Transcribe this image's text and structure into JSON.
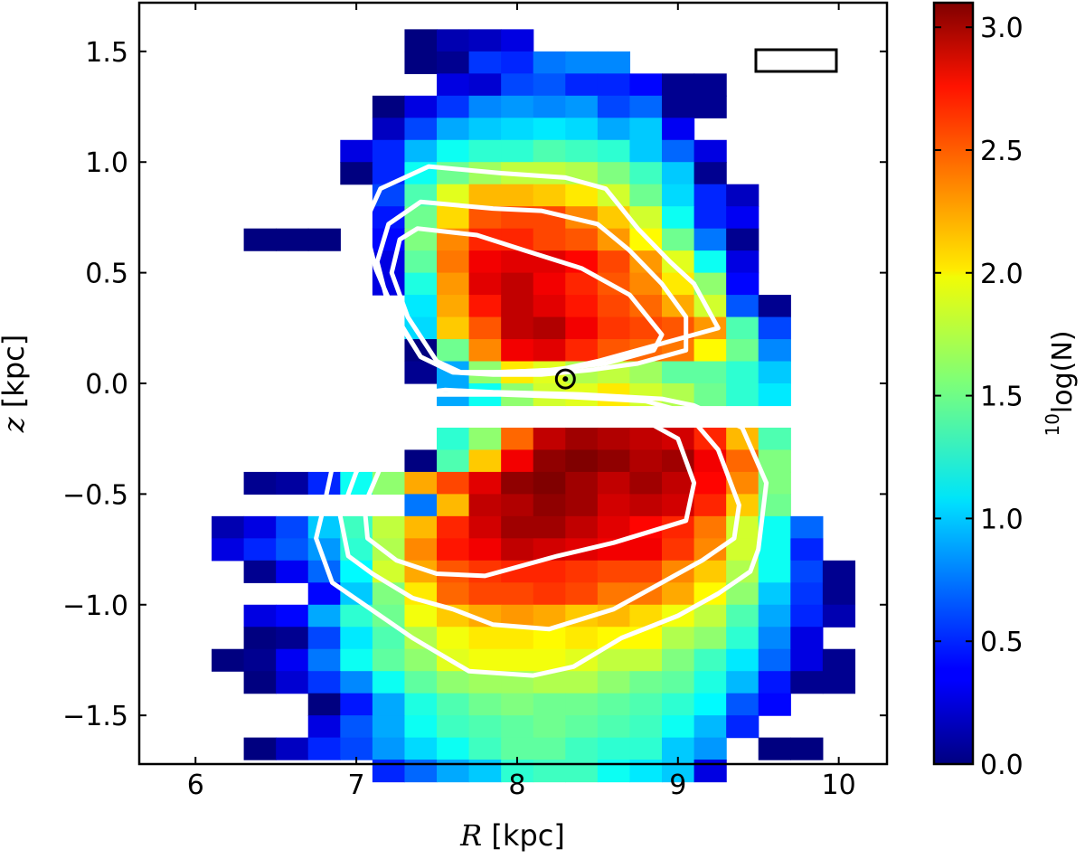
{
  "chart_data": {
    "type": "heatmap",
    "title": "",
    "xlabel_var": "R",
    "xlabel_unit": " [kpc]",
    "ylabel_var": "z",
    "ylabel_unit": " [kpc]",
    "xlim": [
      5.65,
      10.3
    ],
    "ylim": [
      -1.72,
      1.72
    ],
    "xticks": [
      6,
      7,
      8,
      9,
      10
    ],
    "xtick_labels": [
      "6",
      "7",
      "8",
      "9",
      "10"
    ],
    "yticks": [
      -1.5,
      -1.0,
      -0.5,
      0.0,
      0.5,
      1.0,
      1.5
    ],
    "ytick_labels": [
      "−1.5",
      "−1.0",
      "−0.5",
      "0.0",
      "0.5",
      "1.0",
      "1.5"
    ],
    "bin_R_start": 6.1,
    "bin_R_width": 0.2,
    "bin_z_top": 1.6,
    "bin_z_height": 0.1,
    "colorscale": "jet",
    "colorbar": {
      "label_prefix": "10",
      "label_main": "log(N)",
      "range": [
        0.0,
        3.1
      ],
      "ticks": [
        0.0,
        0.5,
        1.0,
        1.5,
        2.0,
        2.5,
        3.0
      ],
      "tick_labels": [
        "0.0",
        "0.5",
        "1.0",
        "1.5",
        "2.0",
        "2.5",
        "3.0"
      ]
    },
    "grid_description": "rows from z=1.6 down to z=-1.6 in 0.1 kpc steps; each row has 20 R-bins starting at R=6.1; null = empty bin",
    "grid": [
      [
        null,
        null,
        null,
        null,
        null,
        null,
        0.0,
        0.15,
        0.2,
        0.3,
        null,
        null,
        null,
        null,
        null,
        null,
        null,
        null,
        null,
        null
      ],
      [
        null,
        null,
        null,
        null,
        null,
        null,
        0.0,
        0.05,
        0.55,
        0.5,
        0.75,
        0.8,
        0.8,
        null,
        null,
        null,
        null,
        null,
        null,
        null
      ],
      [
        null,
        null,
        null,
        null,
        null,
        null,
        null,
        0.3,
        0.25,
        0.6,
        0.65,
        0.5,
        0.5,
        0.4,
        0.05,
        0.05,
        null,
        null,
        null,
        null
      ],
      [
        null,
        null,
        null,
        null,
        null,
        0.0,
        0.3,
        0.55,
        0.8,
        0.85,
        0.8,
        0.85,
        0.6,
        0.7,
        0.05,
        0.05,
        null,
        null,
        null,
        null
      ],
      [
        null,
        null,
        null,
        null,
        null,
        0.2,
        0.6,
        0.9,
        1.0,
        1.05,
        1.1,
        1.05,
        0.9,
        1.0,
        0.35,
        null,
        null,
        null,
        null,
        null
      ],
      [
        null,
        null,
        null,
        null,
        0.3,
        0.5,
        0.95,
        1.2,
        1.3,
        1.3,
        1.4,
        1.35,
        1.3,
        1.0,
        0.7,
        0.3,
        null,
        null,
        null,
        null
      ],
      [
        null,
        null,
        null,
        null,
        0.0,
        0.5,
        1.2,
        1.5,
        1.65,
        1.75,
        1.75,
        1.7,
        1.55,
        1.35,
        1.0,
        0.05,
        null,
        null,
        null,
        null
      ],
      [
        null,
        null,
        null,
        null,
        null,
        0.6,
        1.4,
        1.85,
        2.15,
        2.15,
        2.1,
        2.0,
        1.8,
        1.5,
        1.05,
        0.5,
        0.2,
        null,
        null,
        null
      ],
      [
        null,
        null,
        null,
        null,
        null,
        0.45,
        1.5,
        2.05,
        2.45,
        2.5,
        2.5,
        2.3,
        2.1,
        1.8,
        1.2,
        0.5,
        0.35,
        null,
        null,
        null
      ],
      [
        null,
        0.0,
        0.0,
        0.0,
        null,
        0.4,
        1.55,
        2.3,
        2.6,
        2.6,
        2.5,
        2.45,
        2.25,
        1.95,
        1.5,
        0.75,
        0.05,
        null,
        null,
        null
      ],
      [
        null,
        null,
        null,
        null,
        null,
        0.3,
        1.45,
        2.35,
        2.75,
        2.8,
        2.8,
        2.7,
        2.5,
        2.25,
        1.85,
        1.2,
        0.3,
        null,
        null,
        null
      ],
      [
        null,
        null,
        null,
        null,
        null,
        0.3,
        1.25,
        2.25,
        2.8,
        2.9,
        2.75,
        2.6,
        2.45,
        2.3,
        2.0,
        1.6,
        0.4,
        null,
        null,
        null
      ],
      [
        null,
        null,
        null,
        null,
        null,
        null,
        1.1,
        2.2,
        2.65,
        2.9,
        2.8,
        2.65,
        2.5,
        2.4,
        2.2,
        1.8,
        0.65,
        0.05,
        null,
        null
      ],
      [
        null,
        null,
        null,
        null,
        null,
        null,
        1.05,
        2.1,
        2.45,
        2.9,
        2.95,
        2.75,
        2.55,
        2.5,
        2.45,
        2.25,
        1.4,
        0.6,
        null,
        null
      ],
      [
        null,
        null,
        null,
        null,
        null,
        null,
        0.0,
        1.5,
        2.3,
        2.75,
        2.8,
        2.6,
        2.45,
        2.4,
        2.35,
        1.95,
        1.5,
        0.8,
        null,
        null
      ],
      [
        null,
        null,
        null,
        null,
        null,
        null,
        0.05,
        0.9,
        1.6,
        2.0,
        1.85,
        1.7,
        1.75,
        1.65,
        1.45,
        1.45,
        1.3,
        1.0,
        null,
        null
      ],
      [
        null,
        null,
        null,
        null,
        null,
        null,
        null,
        0.9,
        1.2,
        1.6,
        1.8,
        1.85,
        2.0,
        1.8,
        1.7,
        1.5,
        1.3,
        1.1,
        null,
        null
      ],
      [
        null,
        null,
        null,
        null,
        null,
        null,
        null,
        null,
        null,
        null,
        null,
        null,
        null,
        null,
        null,
        null,
        null,
        null,
        null,
        null
      ],
      [
        null,
        null,
        null,
        null,
        null,
        null,
        null,
        1.3,
        1.6,
        2.4,
        2.9,
        3.0,
        2.95,
        2.9,
        2.85,
        2.6,
        2.15,
        1.4,
        null,
        null
      ],
      [
        null,
        null,
        null,
        null,
        null,
        null,
        0.0,
        1.4,
        2.1,
        2.75,
        3.05,
        3.1,
        3.05,
        2.95,
        3.0,
        2.75,
        2.4,
        1.55,
        null,
        null
      ],
      [
        null,
        0.05,
        0.1,
        0.5,
        1.2,
        1.6,
        2.2,
        2.5,
        2.8,
        3.05,
        3.1,
        3.0,
        2.9,
        3.0,
        2.9,
        2.7,
        2.3,
        1.55,
        null,
        null
      ],
      [
        null,
        null,
        null,
        null,
        null,
        null,
        0.75,
        2.15,
        2.9,
        2.95,
        3.05,
        3.0,
        2.85,
        2.9,
        2.85,
        2.6,
        2.1,
        1.5,
        null,
        null
      ],
      [
        0.15,
        0.3,
        0.6,
        1.0,
        1.35,
        1.75,
        2.15,
        2.6,
        2.85,
        3.0,
        3.0,
        2.9,
        2.8,
        2.7,
        2.6,
        2.35,
        1.8,
        1.2,
        0.7,
        null
      ],
      [
        0.3,
        0.5,
        0.65,
        0.85,
        1.3,
        1.7,
        2.3,
        2.65,
        2.75,
        2.9,
        2.85,
        2.8,
        2.75,
        2.75,
        2.55,
        2.3,
        1.8,
        1.2,
        0.5,
        null
      ],
      [
        null,
        0.05,
        0.35,
        0.7,
        1.15,
        1.8,
        2.2,
        2.45,
        2.55,
        2.6,
        2.6,
        2.55,
        2.5,
        2.5,
        2.3,
        2.1,
        1.7,
        1.2,
        0.6,
        0.05
      ],
      [
        null,
        null,
        null,
        0.4,
        1.0,
        1.55,
        2.0,
        2.4,
        2.5,
        2.5,
        2.55,
        2.5,
        2.35,
        2.35,
        2.2,
        1.95,
        1.6,
        1.0,
        0.55,
        0.05
      ],
      [
        null,
        0.3,
        0.4,
        0.9,
        1.3,
        1.5,
        1.9,
        2.1,
        2.2,
        2.25,
        2.2,
        2.1,
        2.15,
        2.05,
        1.9,
        1.75,
        1.4,
        0.9,
        0.5,
        0.15
      ],
      [
        null,
        0.0,
        0.05,
        0.6,
        1.1,
        1.4,
        1.7,
        1.9,
        2.0,
        2.0,
        1.95,
        2.0,
        1.95,
        1.95,
        1.7,
        1.6,
        1.3,
        0.8,
        0.3,
        null
      ],
      [
        0.0,
        0.05,
        0.35,
        0.75,
        1.2,
        1.45,
        1.6,
        1.85,
        1.9,
        1.9,
        1.9,
        1.85,
        1.75,
        1.75,
        1.55,
        1.35,
        1.1,
        0.7,
        0.3,
        0.05
      ],
      [
        null,
        0.0,
        0.25,
        0.55,
        0.8,
        1.2,
        1.45,
        1.6,
        1.65,
        1.65,
        1.7,
        1.7,
        1.6,
        1.5,
        1.45,
        1.25,
        0.95,
        0.45,
        0.05,
        0.05
      ],
      [
        null,
        null,
        null,
        0.0,
        0.45,
        0.9,
        1.25,
        1.4,
        1.5,
        1.55,
        1.5,
        1.5,
        1.45,
        1.4,
        1.3,
        1.15,
        0.65,
        0.4,
        null,
        null
      ],
      [
        null,
        null,
        null,
        0.3,
        0.65,
        0.9,
        1.2,
        1.35,
        1.4,
        1.45,
        1.5,
        1.45,
        1.4,
        1.35,
        1.2,
        0.95,
        0.5,
        null,
        null,
        null
      ],
      [
        null,
        0.0,
        0.2,
        0.5,
        0.6,
        0.85,
        1.05,
        1.2,
        1.35,
        1.45,
        1.45,
        1.35,
        1.3,
        1.3,
        1.0,
        0.85,
        null,
        0.0,
        0.0,
        null
      ],
      [
        null,
        null,
        null,
        null,
        null,
        0.5,
        0.7,
        0.9,
        1.0,
        1.3,
        1.35,
        1.35,
        1.2,
        1.1,
        1.0,
        0.3,
        null,
        null,
        null,
        null
      ]
    ],
    "contours_description": "three white density contour levels, each drawn as an upper (z>0) and lower (z<0) closed loop",
    "contours": [
      {
        "level": "outer",
        "points": [
          [
            7.45,
            0.98
          ],
          [
            7.9,
            0.95
          ],
          [
            8.3,
            0.93
          ],
          [
            8.55,
            0.88
          ],
          [
            8.75,
            0.7
          ],
          [
            8.95,
            0.55
          ],
          [
            9.1,
            0.45
          ],
          [
            9.25,
            0.25
          ],
          [
            9.0,
            0.2
          ],
          [
            8.75,
            0.15
          ],
          [
            8.5,
            0.1
          ],
          [
            8.25,
            0.06
          ],
          [
            7.85,
            0.05
          ],
          [
            7.6,
            0.05
          ],
          [
            7.4,
            0.12
          ],
          [
            7.25,
            0.3
          ],
          [
            7.12,
            0.52
          ],
          [
            7.05,
            0.72
          ],
          [
            7.15,
            0.88
          ]
        ]
      },
      {
        "level": "middle",
        "points": [
          [
            7.4,
            0.82
          ],
          [
            7.85,
            0.79
          ],
          [
            8.15,
            0.78
          ],
          [
            8.5,
            0.72
          ],
          [
            8.7,
            0.6
          ],
          [
            8.9,
            0.45
          ],
          [
            9.05,
            0.3
          ],
          [
            9.05,
            0.15
          ],
          [
            8.75,
            0.09
          ],
          [
            8.45,
            0.06
          ],
          [
            8.15,
            0.04
          ],
          [
            7.85,
            0.04
          ],
          [
            7.6,
            0.05
          ],
          [
            7.4,
            0.12
          ],
          [
            7.2,
            0.35
          ],
          [
            7.13,
            0.55
          ],
          [
            7.2,
            0.72
          ]
        ]
      },
      {
        "level": "inner",
        "points": [
          [
            7.38,
            0.7
          ],
          [
            7.75,
            0.67
          ],
          [
            8.05,
            0.6
          ],
          [
            8.4,
            0.52
          ],
          [
            8.7,
            0.4
          ],
          [
            8.9,
            0.22
          ],
          [
            8.85,
            0.15
          ],
          [
            8.55,
            0.09
          ],
          [
            8.2,
            0.06
          ],
          [
            7.9,
            0.05
          ],
          [
            7.65,
            0.05
          ],
          [
            7.5,
            0.1
          ],
          [
            7.32,
            0.3
          ],
          [
            7.22,
            0.5
          ],
          [
            7.27,
            0.65
          ]
        ]
      },
      {
        "level": "outer",
        "points": [
          [
            7.55,
            -0.03
          ],
          [
            7.85,
            -0.04
          ],
          [
            8.4,
            -0.05
          ],
          [
            8.9,
            -0.07
          ],
          [
            9.1,
            -0.1
          ],
          [
            9.4,
            -0.2
          ],
          [
            9.55,
            -0.45
          ],
          [
            9.5,
            -0.75
          ],
          [
            9.45,
            -0.85
          ],
          [
            9.25,
            -0.95
          ],
          [
            9.0,
            -1.05
          ],
          [
            8.65,
            -1.15
          ],
          [
            8.35,
            -1.28
          ],
          [
            8.1,
            -1.32
          ],
          [
            7.7,
            -1.3
          ],
          [
            7.35,
            -1.15
          ],
          [
            7.05,
            -1.0
          ],
          [
            6.85,
            -0.9
          ],
          [
            6.75,
            -0.7
          ],
          [
            6.8,
            -0.55
          ],
          [
            6.85,
            -0.38
          ],
          [
            6.9,
            -0.25
          ],
          [
            7.1,
            -0.12
          ],
          [
            7.3,
            -0.05
          ]
        ]
      },
      {
        "level": "middle",
        "points": [
          [
            7.5,
            -0.05
          ],
          [
            7.9,
            -0.05
          ],
          [
            8.3,
            -0.06
          ],
          [
            8.8,
            -0.08
          ],
          [
            9.05,
            -0.13
          ],
          [
            9.25,
            -0.3
          ],
          [
            9.38,
            -0.55
          ],
          [
            9.35,
            -0.7
          ],
          [
            9.15,
            -0.8
          ],
          [
            8.95,
            -0.88
          ],
          [
            8.6,
            -1.02
          ],
          [
            8.2,
            -1.11
          ],
          [
            7.85,
            -1.09
          ],
          [
            7.6,
            -1.02
          ],
          [
            7.35,
            -0.97
          ],
          [
            7.1,
            -0.86
          ],
          [
            6.95,
            -0.78
          ],
          [
            6.9,
            -0.6
          ],
          [
            7.0,
            -0.4
          ],
          [
            7.2,
            -0.2
          ],
          [
            7.35,
            -0.1
          ]
        ]
      },
      {
        "level": "inner",
        "points": [
          [
            7.45,
            -0.12
          ],
          [
            7.85,
            -0.12
          ],
          [
            8.3,
            -0.12
          ],
          [
            8.75,
            -0.15
          ],
          [
            9.0,
            -0.25
          ],
          [
            9.1,
            -0.45
          ],
          [
            9.05,
            -0.62
          ],
          [
            8.6,
            -0.72
          ],
          [
            8.25,
            -0.78
          ],
          [
            7.8,
            -0.87
          ],
          [
            7.5,
            -0.86
          ],
          [
            7.25,
            -0.8
          ],
          [
            7.07,
            -0.7
          ],
          [
            7.05,
            -0.55
          ],
          [
            7.15,
            -0.38
          ],
          [
            7.3,
            -0.22
          ]
        ]
      }
    ],
    "sun": {
      "R": 8.3,
      "z": 0.02,
      "symbol": "⊙"
    },
    "legend_box": "top-right",
    "grid_lines": false
  }
}
